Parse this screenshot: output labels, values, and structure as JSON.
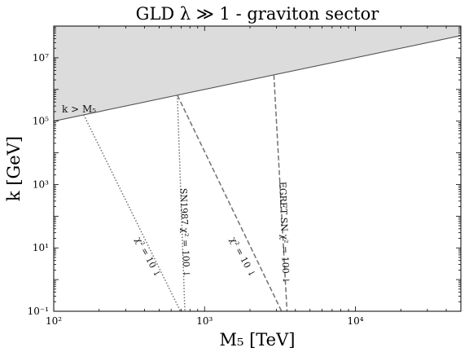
{
  "chart_data": {
    "type": "line",
    "title": "GLD λ ≫ 1 - graviton sector",
    "xlabel": "M₅ [TeV]",
    "ylabel": "k [GeV]",
    "xscale": "log",
    "yscale": "log",
    "xlim": [
      100,
      50000
    ],
    "ylim": [
      0.1,
      100000000
    ],
    "x_ticks": [
      {
        "value": 100,
        "label": "10²"
      },
      {
        "value": 1000,
        "label": "10³"
      },
      {
        "value": 10000,
        "label": "10⁴"
      }
    ],
    "y_ticks": [
      {
        "value": 0.1,
        "label": "10⁻¹"
      },
      {
        "value": 10,
        "label": "10¹"
      },
      {
        "value": 1000,
        "label": "10³"
      },
      {
        "value": 100000,
        "label": "10⁵"
      },
      {
        "value": 10000000,
        "label": "10⁷"
      }
    ],
    "grid": false,
    "excluded_region": {
      "label": "k > M₅",
      "boundary": {
        "x": [
          100,
          50000
        ],
        "y": [
          100000,
          50000000
        ]
      },
      "color": "#dcdcdc"
    },
    "series": [
      {
        "name": "SN1987 χ² = 10",
        "style": "dotted",
        "color": "#707070",
        "x": [
          158,
          692
        ],
        "y": [
          158000,
          0.1
        ]
      },
      {
        "name": "SN1987 χ² = 100",
        "style": "dotted",
        "color": "#707070",
        "x": [
          660,
          740
        ],
        "y": [
          660000,
          0.1
        ]
      },
      {
        "name": "EGRET SN χ² = 10",
        "style": "dashed",
        "color": "#707070",
        "x": [
          660,
          3240
        ],
        "y": [
          660000,
          0.1
        ]
      },
      {
        "name": "EGRET SN χ² = 100",
        "style": "dashed",
        "color": "#707070",
        "x": [
          2880,
          3520
        ],
        "y": [
          2880000,
          0.1
        ]
      }
    ],
    "annotations": [
      {
        "text": "χ² = 10 ↓",
        "x": 420,
        "y": 5
      },
      {
        "text": "SN1987 χ² = 100 ↓",
        "x": 735,
        "y": 30
      },
      {
        "text": "χ² = 10 ↓",
        "x": 1780,
        "y": 5
      },
      {
        "text": "EGRET SN χ² = 100 ↓",
        "x": 3350,
        "y": 30
      }
    ]
  }
}
